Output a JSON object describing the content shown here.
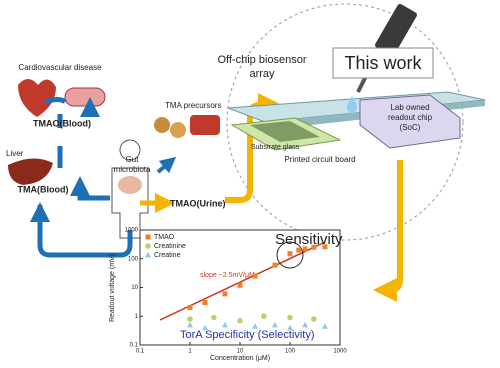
{
  "labels": {
    "cardiovascular": "Cardiovascular disease",
    "tmao_blood": "TMAO(Blood)",
    "liver": "Liver",
    "tma_blood": "TMA(Blood)",
    "gut": [
      "Gut",
      "microbiota"
    ],
    "precursors": "TMA precursors",
    "tmao_urine": "TMAO(Urine)",
    "biosensor": [
      "Off-chip biosensor",
      "array"
    ],
    "this_work": "This work",
    "substrate": "Substrate glass",
    "readout": [
      "Lab owned",
      "readout chip",
      "(SoC)"
    ],
    "pcb": "Printed circuit board"
  },
  "chart_data": {
    "type": "scatter",
    "x_label": "Concentration (μM)",
    "y_label": "Readout voltage (mV)",
    "annotations": {
      "slope": "slope ~2.5mV/μM",
      "sensitivity": "Sensitivity",
      "selectivity": "TorA Specificity (Selectivity)"
    },
    "log_x": true,
    "log_y": true,
    "xlim": [
      0.1,
      1000
    ],
    "ylim": [
      0.1,
      1000
    ],
    "xticks": [
      0.1,
      1,
      10,
      100,
      1000
    ],
    "yticks": [
      0.1,
      1,
      10,
      100,
      1000
    ],
    "series": [
      {
        "name": "TMAO",
        "color": "#f07f2a",
        "marker": "square",
        "x": [
          1,
          2,
          5,
          10,
          20,
          50,
          100,
          150,
          200,
          300,
          500
        ],
        "values": [
          2,
          3,
          6,
          12,
          25,
          60,
          150,
          200,
          220,
          250,
          260
        ]
      },
      {
        "name": "Creatinine",
        "color": "#b5d36a",
        "marker": "circle",
        "x": [
          1,
          3,
          10,
          30,
          100,
          300
        ],
        "values": [
          0.8,
          0.9,
          0.7,
          1,
          0.9,
          0.8
        ]
      },
      {
        "name": "Creatine",
        "color": "#8ec9e6",
        "marker": "triangle",
        "x": [
          1,
          2,
          5,
          20,
          50,
          100,
          200,
          500
        ],
        "values": [
          0.5,
          0.4,
          0.5,
          0.45,
          0.5,
          0.4,
          0.5,
          0.45
        ]
      }
    ]
  }
}
